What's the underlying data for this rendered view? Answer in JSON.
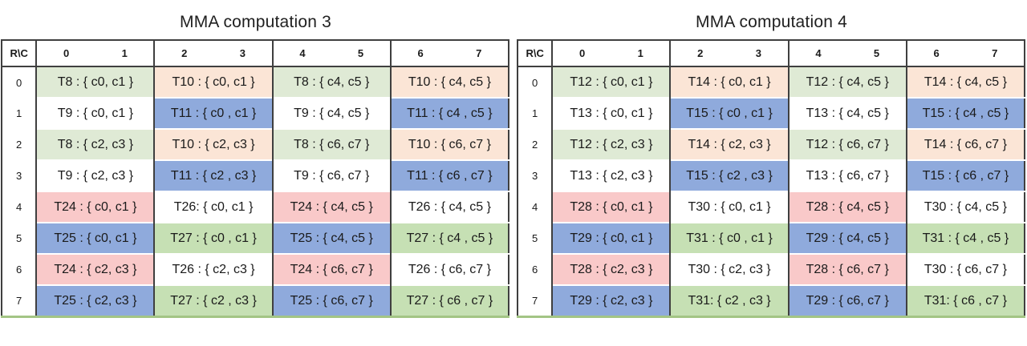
{
  "page": {
    "background": "#ffffff"
  },
  "colors": {
    "g1": "#DFEAD5",
    "pe": "#FBE5D6",
    "wh": "#FFFFFF",
    "bl": "#8FAADC",
    "pk": "#F9C9C9",
    "g2": "#C6E0B4"
  },
  "borders": {
    "grid": "#3F3F3F",
    "bottom_strip": "#A3C585"
  },
  "tables": [
    {
      "title": "MMA computation 3",
      "corner_label": "R\\C",
      "col_headers": [
        "0",
        "1",
        "2",
        "3",
        "4",
        "5",
        "6",
        "7"
      ],
      "row_headers": [
        "0",
        "1",
        "2",
        "3",
        "4",
        "5",
        "6",
        "7"
      ],
      "rows": [
        [
          {
            "t": "T8 : { c0, c1 }",
            "c": "g1"
          },
          {
            "t": "T10 : { c0, c1 }",
            "c": "pe"
          },
          {
            "t": "T8 : { c4, c5 }",
            "c": "g1"
          },
          {
            "t": "T10 : { c4, c5 }",
            "c": "pe"
          }
        ],
        [
          {
            "t": "T9 : { c0, c1 }",
            "c": "wh"
          },
          {
            "t": "T11 : { c0 , c1 }",
            "c": "bl"
          },
          {
            "t": "T9 : { c4, c5 }",
            "c": "wh"
          },
          {
            "t": "T11 : { c4 , c5 }",
            "c": "bl"
          }
        ],
        [
          {
            "t": "T8 : { c2, c3 }",
            "c": "g1"
          },
          {
            "t": "T10 : { c2, c3 }",
            "c": "pe"
          },
          {
            "t": "T8 : { c6, c7 }",
            "c": "g1"
          },
          {
            "t": "T10 : { c6, c7 }",
            "c": "pe"
          }
        ],
        [
          {
            "t": "T9 : { c2, c3 }",
            "c": "wh"
          },
          {
            "t": "T11 : { c2 , c3 }",
            "c": "bl"
          },
          {
            "t": "T9 : { c6, c7 }",
            "c": "wh"
          },
          {
            "t": "T11 : { c6 , c7 }",
            "c": "bl"
          }
        ],
        [
          {
            "t": "T24 : { c0, c1 }",
            "c": "pk"
          },
          {
            "t": "T26: { c0, c1 }",
            "c": "wh"
          },
          {
            "t": "T24 : { c4, c5 }",
            "c": "pk"
          },
          {
            "t": "T26 : { c4, c5 }",
            "c": "wh"
          }
        ],
        [
          {
            "t": "T25 : { c0, c1 }",
            "c": "bl"
          },
          {
            "t": "T27 : { c0 , c1 }",
            "c": "g2"
          },
          {
            "t": "T25 : { c4, c5 }",
            "c": "bl"
          },
          {
            "t": "T27 : { c4 , c5 }",
            "c": "g2"
          }
        ],
        [
          {
            "t": "T24 : { c2, c3 }",
            "c": "pk"
          },
          {
            "t": "T26 : { c2, c3 }",
            "c": "wh"
          },
          {
            "t": "T24 : { c6, c7 }",
            "c": "pk"
          },
          {
            "t": "T26 : { c6, c7 }",
            "c": "wh"
          }
        ],
        [
          {
            "t": "T25 : { c2, c3 }",
            "c": "bl"
          },
          {
            "t": "T27 : { c2 , c3 }",
            "c": "g2"
          },
          {
            "t": "T25 : { c6, c7 }",
            "c": "bl"
          },
          {
            "t": "T27 : { c6 , c7 }",
            "c": "g2"
          }
        ]
      ]
    },
    {
      "title": "MMA computation 4",
      "corner_label": "R\\C",
      "col_headers": [
        "0",
        "1",
        "2",
        "3",
        "4",
        "5",
        "6",
        "7"
      ],
      "row_headers": [
        "0",
        "1",
        "2",
        "3",
        "4",
        "5",
        "6",
        "7"
      ],
      "rows": [
        [
          {
            "t": "T12 : { c0, c1 }",
            "c": "g1"
          },
          {
            "t": "T14 : { c0, c1 }",
            "c": "pe"
          },
          {
            "t": "T12 : { c4, c5 }",
            "c": "g1"
          },
          {
            "t": "T14 : { c4, c5 }",
            "c": "pe"
          }
        ],
        [
          {
            "t": "T13 : { c0, c1 }",
            "c": "wh"
          },
          {
            "t": "T15 : { c0 , c1 }",
            "c": "bl"
          },
          {
            "t": "T13 : { c4, c5 }",
            "c": "wh"
          },
          {
            "t": "T15 : { c4 , c5 }",
            "c": "bl"
          }
        ],
        [
          {
            "t": "T12 : { c2, c3 }",
            "c": "g1"
          },
          {
            "t": "T14 : { c2, c3 }",
            "c": "pe"
          },
          {
            "t": "T12 : { c6, c7 }",
            "c": "g1"
          },
          {
            "t": "T14 : { c6, c7 }",
            "c": "pe"
          }
        ],
        [
          {
            "t": "T13 : { c2, c3 }",
            "c": "wh"
          },
          {
            "t": "T15 : { c2 , c3 }",
            "c": "bl"
          },
          {
            "t": "T13 : { c6, c7 }",
            "c": "wh"
          },
          {
            "t": "T15 : { c6 , c7 }",
            "c": "bl"
          }
        ],
        [
          {
            "t": "T28 : { c0, c1 }",
            "c": "pk"
          },
          {
            "t": "T30 : { c0, c1 }",
            "c": "wh"
          },
          {
            "t": "T28 : { c4, c5 }",
            "c": "pk"
          },
          {
            "t": "T30 : { c4, c5 }",
            "c": "wh"
          }
        ],
        [
          {
            "t": "T29 : { c0, c1 }",
            "c": "bl"
          },
          {
            "t": "T31 : { c0 , c1 }",
            "c": "g2"
          },
          {
            "t": "T29 : { c4, c5 }",
            "c": "bl"
          },
          {
            "t": "T31 : { c4 , c5 }",
            "c": "g2"
          }
        ],
        [
          {
            "t": "T28 : { c2, c3 }",
            "c": "pk"
          },
          {
            "t": "T30 : { c2, c3 }",
            "c": "wh"
          },
          {
            "t": "T28 : { c6, c7 }",
            "c": "pk"
          },
          {
            "t": "T30 : { c6, c7 }",
            "c": "wh"
          }
        ],
        [
          {
            "t": "T29 : { c2, c3 }",
            "c": "bl"
          },
          {
            "t": "T31: { c2 , c3 }",
            "c": "g2"
          },
          {
            "t": "T29 : { c6, c7 }",
            "c": "bl"
          },
          {
            "t": "T31: { c6 , c7 }",
            "c": "g2"
          }
        ]
      ]
    }
  ]
}
